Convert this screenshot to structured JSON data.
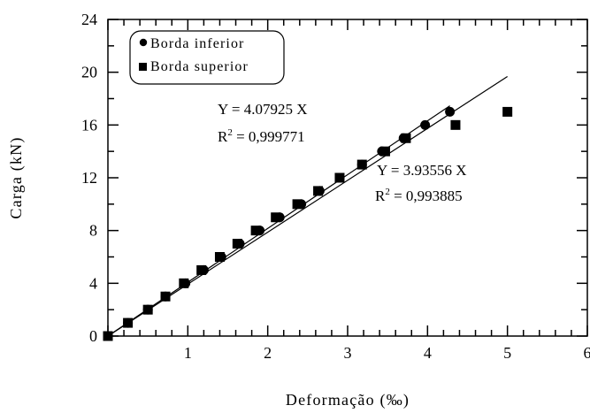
{
  "chart_data": {
    "type": "scatter",
    "xlabel": "Deformação (‰)",
    "ylabel": "Carga (kN)",
    "xlim": [
      0,
      6
    ],
    "ylim": [
      0,
      24
    ],
    "xticks": [
      "",
      "1",
      "2",
      "3",
      "4",
      "5",
      "6"
    ],
    "yticks": [
      "0",
      "4",
      "8",
      "12",
      "16",
      "20",
      "24"
    ],
    "grid": false,
    "legend_position": "top-left",
    "series": [
      {
        "name": "Borda inferior",
        "marker": "circle",
        "color": "#000000",
        "x": [
          0,
          0.25,
          0.5,
          0.72,
          0.97,
          1.2,
          1.42,
          1.65,
          1.9,
          2.15,
          2.42,
          2.65,
          2.9,
          3.18,
          3.43,
          3.7,
          3.97,
          4.28
        ],
        "y": [
          0,
          1,
          2,
          3,
          4,
          5,
          6,
          7,
          8,
          9,
          10,
          11,
          12,
          13,
          14,
          15,
          16,
          17
        ]
      },
      {
        "name": "Borda superior",
        "marker": "square",
        "color": "#000000",
        "x": [
          0,
          0.25,
          0.5,
          0.72,
          0.95,
          1.17,
          1.4,
          1.62,
          1.85,
          2.1,
          2.37,
          2.63,
          2.9,
          3.18,
          3.47,
          3.73,
          4.35,
          5.0
        ],
        "y": [
          0,
          1,
          2,
          3,
          4,
          5,
          6,
          7,
          8,
          9,
          10,
          11,
          12,
          13,
          14,
          15,
          16,
          17
        ]
      }
    ],
    "fits": [
      {
        "slope": 4.07925,
        "x_range": [
          0,
          4.28
        ],
        "label_line1": "Y = 4.07925 X",
        "label_line2_prefix": "R",
        "label_line2_sup": "2",
        "label_line2_rest": " = 0,999771"
      },
      {
        "slope": 3.93556,
        "x_range": [
          0,
          5.0
        ],
        "label_line1": "Y = 3.93556 X",
        "label_line2_prefix": "R",
        "label_line2_sup": "2",
        "label_line2_rest": " = 0,993885"
      }
    ]
  }
}
